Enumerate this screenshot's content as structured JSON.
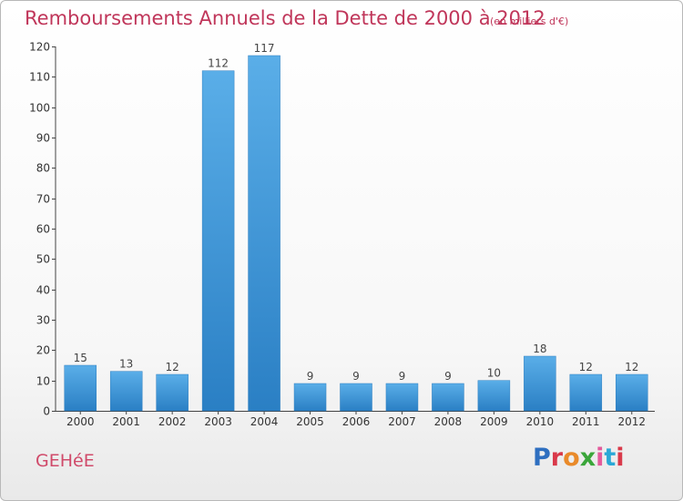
{
  "chart_data": {
    "type": "bar",
    "title": "Remboursements Annuels de la Dette de 2000 à 2012",
    "subtitle": "(en milliers d'€)",
    "categories": [
      "2000",
      "2001",
      "2002",
      "2003",
      "2004",
      "2005",
      "2006",
      "2007",
      "2008",
      "2009",
      "2010",
      "2011",
      "2012"
    ],
    "values": [
      15,
      13,
      12,
      112,
      117,
      9,
      9,
      9,
      9,
      10,
      18,
      12,
      12
    ],
    "ylim": [
      0,
      120
    ],
    "yticks": [
      0,
      10,
      20,
      30,
      40,
      50,
      60,
      70,
      80,
      90,
      100,
      110,
      120
    ],
    "grid": false,
    "bar_color": "#3f96da",
    "data_labels": true
  },
  "footer": {
    "commune": "GEHéE",
    "logo": "Proxiti",
    "logo_colors": [
      "#2e6fc0",
      "#d9394a",
      "#e98a2a",
      "#3aa63a",
      "#e35a9b",
      "#2aa8d6",
      "#d9394a"
    ]
  }
}
